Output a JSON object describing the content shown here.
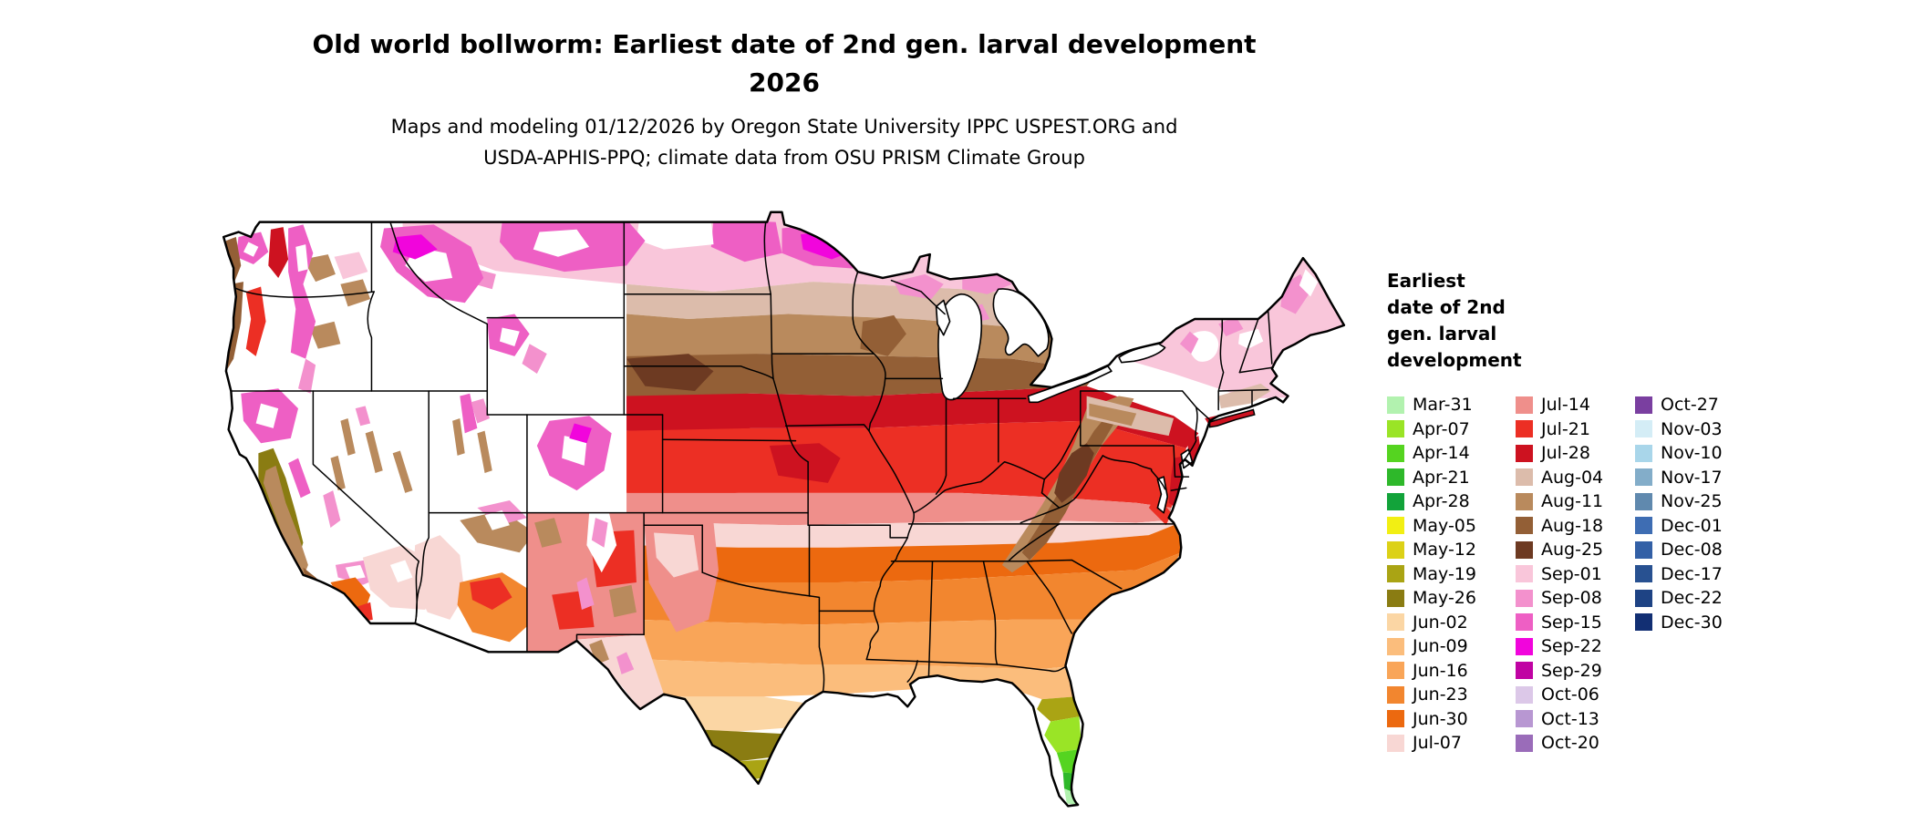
{
  "title": {
    "line1": "Old world bollworm: Earliest date of 2nd gen. larval development",
    "line2": "2026"
  },
  "subtitle": {
    "line1": "Maps and modeling 01/12/2026 by Oregon State University IPPC USPEST.ORG and",
    "line2": "USDA-APHIS-PPQ; climate data from OSU PRISM Climate Group"
  },
  "legend": {
    "title_lines": [
      "Earliest",
      "date of 2nd",
      "gen. larval",
      "development"
    ],
    "columns": [
      [
        {
          "label": "Mar-31",
          "color": "#b2f2af"
        },
        {
          "label": "Apr-07",
          "color": "#9ae426"
        },
        {
          "label": "Apr-14",
          "color": "#55d420"
        },
        {
          "label": "Apr-21",
          "color": "#2eb82a"
        },
        {
          "label": "Apr-28",
          "color": "#12a33a"
        },
        {
          "label": "May-05",
          "color": "#f2ef13"
        },
        {
          "label": "May-12",
          "color": "#dcd117"
        },
        {
          "label": "May-19",
          "color": "#aaa414"
        },
        {
          "label": "May-26",
          "color": "#8a7c12"
        },
        {
          "label": "Jun-02",
          "color": "#fbd6a4"
        },
        {
          "label": "Jun-09",
          "color": "#fbbd7c"
        },
        {
          "label": "Jun-16",
          "color": "#f9a558"
        },
        {
          "label": "Jun-23",
          "color": "#f2862f"
        },
        {
          "label": "Jun-30",
          "color": "#ec690f"
        },
        {
          "label": "Jul-07",
          "color": "#f8d7d4"
        }
      ],
      [
        {
          "label": "Jul-14",
          "color": "#ef8f8b"
        },
        {
          "label": "Jul-21",
          "color": "#ec2f24"
        },
        {
          "label": "Jul-28",
          "color": "#cd1220"
        },
        {
          "label": "Aug-04",
          "color": "#dcbcab"
        },
        {
          "label": "Aug-11",
          "color": "#b98a5d"
        },
        {
          "label": "Aug-18",
          "color": "#935f36"
        },
        {
          "label": "Aug-25",
          "color": "#6d3a22"
        },
        {
          "label": "Sep-01",
          "color": "#f9c6da"
        },
        {
          "label": "Sep-08",
          "color": "#f391cd"
        },
        {
          "label": "Sep-15",
          "color": "#ee5fc4"
        },
        {
          "label": "Sep-22",
          "color": "#f105dc"
        },
        {
          "label": "Sep-29",
          "color": "#c003a3"
        },
        {
          "label": "Oct-06",
          "color": "#dcc8e8"
        },
        {
          "label": "Oct-13",
          "color": "#b897d2"
        },
        {
          "label": "Oct-20",
          "color": "#9a6cb9"
        }
      ],
      [
        {
          "label": "Oct-27",
          "color": "#7a3fa0"
        },
        {
          "label": "Nov-03",
          "color": "#d4edf6"
        },
        {
          "label": "Nov-10",
          "color": "#a9d6ea"
        },
        {
          "label": "Nov-17",
          "color": "#83adc9"
        },
        {
          "label": "Nov-25",
          "color": "#6089ae"
        },
        {
          "label": "Dec-01",
          "color": "#3e6db3"
        },
        {
          "label": "Dec-08",
          "color": "#3360a6"
        },
        {
          "label": "Dec-17",
          "color": "#285191"
        },
        {
          "label": "Dec-22",
          "color": "#1e4384"
        },
        {
          "label": "Dec-30",
          "color": "#122f73"
        }
      ]
    ]
  },
  "map": {
    "region": "Continental United States",
    "no_data_color": "#ffffff",
    "border_color": "#000000"
  }
}
